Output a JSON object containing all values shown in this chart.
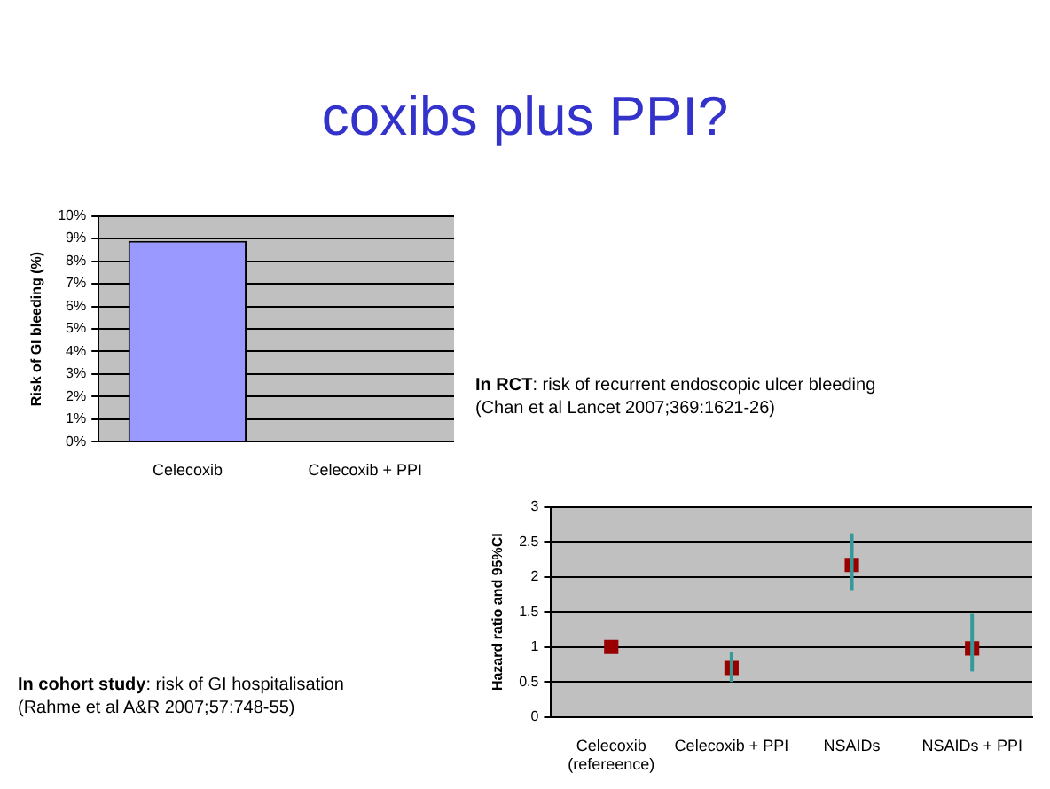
{
  "chart_data": [
    {
      "type": "bar",
      "title": "coxibs plus PPI?",
      "categories": [
        "Celecoxib",
        "Celecoxib + PPI"
      ],
      "values": [
        8.9,
        0
      ],
      "color": "#9999ff",
      "ylabel": "Risk of GI bleeding (%)",
      "ylim": [
        0,
        10
      ],
      "yticks": [
        {
          "value": 0,
          "label": "0%"
        },
        {
          "value": 1,
          "label": "1%"
        },
        {
          "value": 2,
          "label": "2%"
        },
        {
          "value": 3,
          "label": "3%"
        },
        {
          "value": 4,
          "label": "4%"
        },
        {
          "value": 5,
          "label": "5%"
        },
        {
          "value": 6,
          "label": "6%"
        },
        {
          "value": 7,
          "label": "7%"
        },
        {
          "value": 8,
          "label": "8%"
        },
        {
          "value": 9,
          "label": "9%"
        },
        {
          "value": 10,
          "label": "10%"
        }
      ],
      "grid": "y",
      "legend": false,
      "annotations": [
        "In RCT: risk of recurrent endoscopic ulcer bleeding",
        "(Chan et al Lancet 2007;369:1621-26)"
      ]
    },
    {
      "type": "scatter",
      "categories": [
        "Celecoxib\n(refereence)",
        "Celecoxib + PPI",
        "NSAIDs",
        "NSAIDs + PPI"
      ],
      "values": [
        1,
        0.7,
        2.17,
        0.98
      ],
      "errors": [
        null,
        [
          0.5,
          0.93
        ],
        [
          1.8,
          2.62
        ],
        [
          0.65,
          1.47
        ]
      ],
      "color": "#990000",
      "marker": "square",
      "ylabel": "Hazard ratio and 95%CI",
      "ylim": [
        0,
        3
      ],
      "yticks": [
        0,
        0.5,
        1,
        1.5,
        2,
        2.5,
        3
      ],
      "grid": "y",
      "legend": false,
      "annotations": [
        "In cohort study: risk of GI hospitalisation",
        "(Rahme et al A&R 2007;57:748-55)"
      ]
    }
  ]
}
